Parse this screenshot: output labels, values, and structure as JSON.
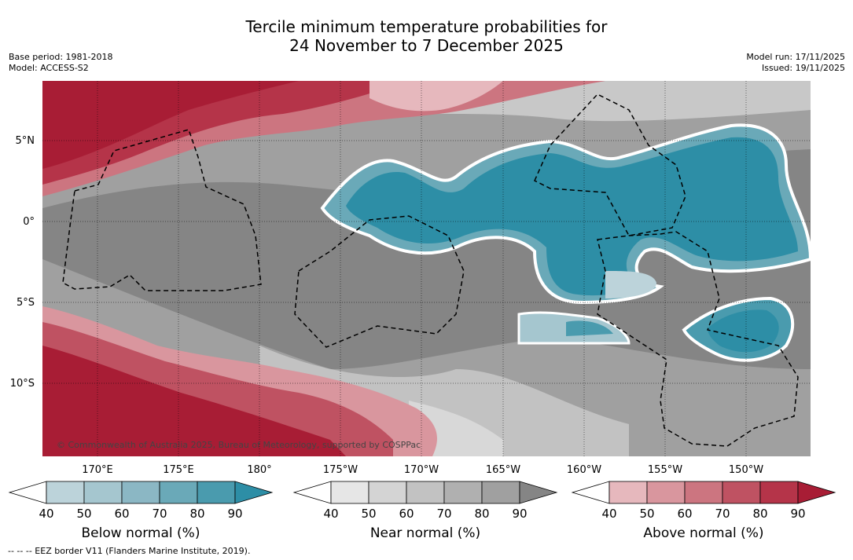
{
  "title_line1": "Tercile minimum temperature probabilities for",
  "title_line2": "24 November to 7 December 2025",
  "base_period": "Base period: 1981-2018",
  "model": "Model: ACCESS-S2",
  "model_run": "Model run: 17/11/2025",
  "issued": "Issued: 19/11/2025",
  "copyright": "© Commonwealth of Australia 2025, Bureau of Meteorology, supported by COSPPac",
  "lat_labels": [
    "5°N",
    "0°",
    "5°S",
    "10°S"
  ],
  "lon_labels": [
    "170°E",
    "175°E",
    "180°",
    "175°W",
    "170°W",
    "165°W",
    "160°W",
    "155°W",
    "150°W"
  ],
  "colorbars": [
    {
      "label": "Below normal (%)",
      "ticks": [
        "40",
        "50",
        "60",
        "70",
        "80",
        "90"
      ],
      "colors": [
        "#ffffff",
        "#bcd3da",
        "#a5c6cf",
        "#8bb7c4",
        "#6aa9b8",
        "#4a9bae",
        "#2d8ea6"
      ]
    },
    {
      "label": "Near normal (%)",
      "ticks": [
        "40",
        "50",
        "60",
        "70",
        "80",
        "90"
      ],
      "colors": [
        "#ffffff",
        "#e6e6e6",
        "#d4d4d4",
        "#c2c2c2",
        "#b0b0b0",
        "#a0a0a0",
        "#858585"
      ]
    },
    {
      "label": "Above normal (%)",
      "ticks": [
        "40",
        "50",
        "60",
        "70",
        "80",
        "90"
      ],
      "colors": [
        "#ffffff",
        "#e6b8bd",
        "#d9969e",
        "#cc7580",
        "#bf5262",
        "#b53449",
        "#a81d35"
      ]
    }
  ],
  "footnote": "--  --  -- EEZ border V11 (Flanders Marine Institute, 2019)."
}
